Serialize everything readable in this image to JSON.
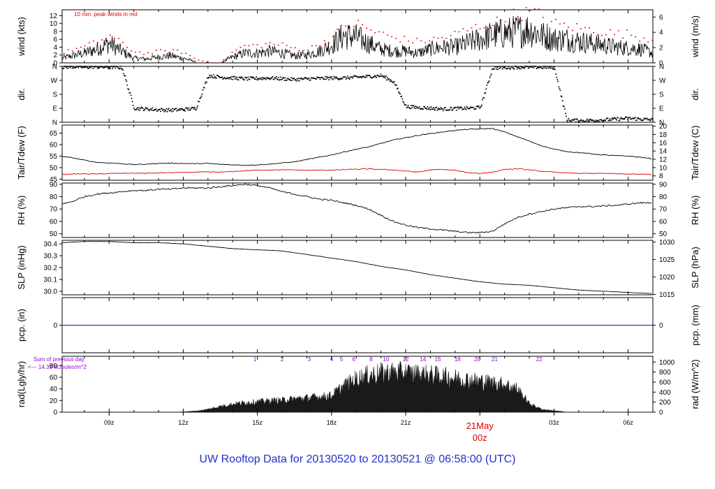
{
  "caption": "UW Rooftop Data for 20130520  to  20130521 @ 06:58:00  (UTC)",
  "colors": {
    "frame": "#000000",
    "data": "#000000",
    "peak": "#e00000",
    "dewpoint": "#e00000",
    "precip": "#1010c0",
    "annot": "#9400d3",
    "date": "#e00000",
    "caption": "#1f2fd0"
  },
  "wind_note": "10 min. peak winds in red",
  "rad_note_1": "Sum of previous day",
  "rad_note_2": "<--- 14.35 MJoules/m^2",
  "date_marker": {
    "day": "21May",
    "hour": "00z"
  },
  "x_ticks": [
    "09z",
    "12z",
    "15z",
    "18z",
    "21z",
    "00z",
    "03z",
    "06z"
  ],
  "chart_data": [
    {
      "type": "line",
      "id": "wind",
      "ylabel": "wind (kts)",
      "ylabel_right": "wind (m/s)",
      "yticks": [
        "0",
        "2",
        "4",
        "6",
        "8",
        "10",
        "12"
      ],
      "yticks_right": [
        "0",
        "2",
        "4",
        "6"
      ],
      "ylim": [
        0,
        13.5
      ],
      "series": [
        {
          "name": "10 min. peak winds in red",
          "x": [
            7.1,
            7.5,
            8.0,
            8.5,
            9.0,
            9.5,
            10.0,
            10.5,
            11.0,
            11.5,
            12.0,
            12.5,
            13.0,
            13.5,
            14.0,
            14.5,
            15.0,
            15.5,
            16.0,
            16.5,
            17.0,
            17.5,
            18.0,
            18.5,
            19.0,
            19.5,
            20.0,
            20.5,
            21.0,
            21.5,
            22.0,
            22.5,
            23.0,
            23.5,
            24.0,
            24.5,
            25.0,
            25.5,
            26.0,
            26.5,
            27.0,
            27.5,
            28.0,
            28.5,
            29.0,
            29.5,
            30.0,
            30.5,
            31.0
          ],
          "y": [
            2.5,
            3.5,
            4.2,
            5.5,
            7.0,
            5.0,
            3.0,
            2.5,
            3.0,
            3.2,
            2.8,
            1.0,
            0.2,
            0.2,
            3.0,
            4.5,
            4.5,
            5.0,
            4.6,
            3.8,
            3.5,
            5.0,
            6.5,
            9.5,
            10.0,
            8.5,
            7.5,
            6.5,
            6.0,
            5.5,
            6.0,
            6.5,
            7.5,
            8.5,
            9.5,
            10.0,
            11.5,
            12.5,
            13.0,
            12.0,
            10.0,
            9.5,
            9.0,
            8.5,
            8.0,
            7.5,
            7.5,
            6.5,
            6.0
          ]
        },
        {
          "name": "",
          "x": [
            7.1,
            7.5,
            8.0,
            8.5,
            9.0,
            9.5,
            10.0,
            10.5,
            11.0,
            11.5,
            12.0,
            12.5,
            13.0,
            13.5,
            14.0,
            14.5,
            15.0,
            15.5,
            16.0,
            16.5,
            17.0,
            17.5,
            18.0,
            18.5,
            19.0,
            19.5,
            20.0,
            20.5,
            21.0,
            21.5,
            22.0,
            22.5,
            23.0,
            23.5,
            24.0,
            24.5,
            25.0,
            25.5,
            26.0,
            26.5,
            27.0,
            27.5,
            28.0,
            28.5,
            29.0,
            29.5,
            30.0,
            30.5,
            31.0
          ],
          "y": [
            1.2,
            1.8,
            2.5,
            3.5,
            5.0,
            3.0,
            1.2,
            1.0,
            1.5,
            1.8,
            1.2,
            0.3,
            0.0,
            0.0,
            1.5,
            2.5,
            2.5,
            3.0,
            2.5,
            1.8,
            2.0,
            3.0,
            4.5,
            7.0,
            6.5,
            5.0,
            3.5,
            3.0,
            3.0,
            2.5,
            3.5,
            4.0,
            4.0,
            5.0,
            6.0,
            7.0,
            7.5,
            8.0,
            8.5,
            7.0,
            6.0,
            6.0,
            5.5,
            5.0,
            4.5,
            4.0,
            3.8,
            3.5,
            2.5
          ]
        }
      ]
    },
    {
      "type": "scatter",
      "id": "dir",
      "ylabel": "dir.",
      "ylabel_right": "dir.",
      "yticks": [
        "N",
        "E",
        "S",
        "W",
        "N"
      ],
      "yticks_right": [
        "N",
        "E",
        "S",
        "W",
        "N"
      ],
      "ylim": [
        0,
        360
      ],
      "series": [
        {
          "name": "",
          "x": [
            7.1,
            7.5,
            8.0,
            8.5,
            9.0,
            9.5,
            10.0,
            10.5,
            11.0,
            11.5,
            12.0,
            12.5,
            13.0,
            13.5,
            14.0,
            14.5,
            15.0,
            15.5,
            16.0,
            16.5,
            17.0,
            17.5,
            18.0,
            18.5,
            19.0,
            19.5,
            20.0,
            20.5,
            21.0,
            21.5,
            22.0,
            22.5,
            23.0,
            23.5,
            24.0,
            24.5,
            25.0,
            25.5,
            26.0,
            26.5,
            27.0,
            27.5,
            28.0,
            28.5,
            29.0,
            29.5,
            30.0,
            30.5,
            31.0
          ],
          "y": [
            355,
            358,
            355,
            356,
            355,
            352,
            90,
            85,
            80,
            78,
            82,
            90,
            300,
            290,
            285,
            280,
            282,
            285,
            280,
            275,
            280,
            282,
            285,
            285,
            290,
            295,
            300,
            260,
            100,
            95,
            90,
            85,
            88,
            90,
            95,
            350,
            352,
            355,
            355,
            354,
            352,
            15,
            10,
            12,
            15,
            20,
            25,
            20,
            15
          ]
        }
      ]
    },
    {
      "type": "line",
      "id": "temp",
      "ylabel": "Tair/Tdew (F)",
      "ylabel_right": "Tair/Tdew (C)",
      "yticks": [
        "45",
        "50",
        "55",
        "60",
        "65"
      ],
      "yticks_right": [
        "8",
        "10",
        "12",
        "14",
        "16",
        "18",
        "20"
      ],
      "ylim": [
        44.5,
        68.5
      ],
      "series": [
        {
          "name": "",
          "x": [
            7.1,
            7.5,
            8.0,
            8.5,
            9.0,
            9.5,
            10.0,
            10.5,
            11.0,
            11.5,
            12.0,
            12.5,
            13.0,
            13.5,
            14.0,
            14.5,
            15.0,
            15.5,
            16.0,
            16.5,
            17.0,
            17.5,
            18.0,
            18.5,
            19.0,
            19.5,
            20.0,
            20.5,
            21.0,
            21.5,
            22.0,
            22.5,
            23.0,
            23.5,
            24.0,
            24.5,
            25.0,
            25.5,
            26.0,
            26.5,
            27.0,
            27.5,
            28.0,
            28.5,
            29.0,
            29.5,
            30.0,
            30.5,
            31.0
          ],
          "y": [
            54.8,
            54.3,
            53.2,
            52.3,
            52.0,
            51.7,
            51.3,
            51.5,
            51.8,
            51.9,
            51.8,
            51.7,
            51.8,
            51.4,
            51.2,
            51.0,
            51.2,
            51.5,
            52.0,
            52.5,
            53.5,
            54.5,
            55.5,
            56.8,
            58.0,
            59.0,
            60.5,
            62.0,
            63.0,
            64.0,
            64.8,
            65.5,
            66.2,
            66.6,
            66.8,
            67.0,
            65.5,
            63.5,
            61.5,
            59.5,
            58.0,
            57.0,
            56.5,
            56.0,
            55.5,
            55.2,
            55.0,
            54.5,
            53.8
          ]
        },
        {
          "name": "",
          "x": [
            7.1,
            7.5,
            8.0,
            8.5,
            9.0,
            9.5,
            10.0,
            10.5,
            11.0,
            11.5,
            12.0,
            12.5,
            13.0,
            13.5,
            14.0,
            14.5,
            15.0,
            15.5,
            16.0,
            16.5,
            17.0,
            17.5,
            18.0,
            18.5,
            19.0,
            19.5,
            20.0,
            20.5,
            21.0,
            21.5,
            22.0,
            22.5,
            23.0,
            23.5,
            24.0,
            24.5,
            25.0,
            25.5,
            26.0,
            26.5,
            27.0,
            27.5,
            28.0,
            28.5,
            29.0,
            29.5,
            30.0,
            30.5,
            31.0
          ],
          "y": [
            47.0,
            47.2,
            47.3,
            47.2,
            47.4,
            47.5,
            47.6,
            47.5,
            47.7,
            47.8,
            47.9,
            48.0,
            48.1,
            48.0,
            48.3,
            48.6,
            48.9,
            49.0,
            49.0,
            49.0,
            48.8,
            48.9,
            48.9,
            49.1,
            49.3,
            49.4,
            49.2,
            49.0,
            48.5,
            48.0,
            49.0,
            49.2,
            48.8,
            47.8,
            47.5,
            48.0,
            49.2,
            49.5,
            49.0,
            48.4,
            48.0,
            47.7,
            47.5,
            47.4,
            47.5,
            47.3,
            47.2,
            47.1,
            47.0
          ]
        }
      ]
    },
    {
      "type": "line",
      "id": "rh",
      "ylabel": "RH (%)",
      "ylabel_right": "RH (%)",
      "yticks": [
        "50",
        "60",
        "70",
        "80",
        "90"
      ],
      "yticks_right": [
        "50",
        "60",
        "70",
        "80",
        "90"
      ],
      "ylim": [
        47,
        91
      ],
      "series": [
        {
          "name": "",
          "x": [
            7.1,
            7.5,
            8.0,
            8.5,
            9.0,
            9.5,
            10.0,
            10.5,
            11.0,
            11.5,
            12.0,
            12.5,
            13.0,
            13.5,
            14.0,
            14.5,
            15.0,
            15.5,
            16.0,
            16.5,
            17.0,
            17.5,
            18.0,
            18.5,
            19.0,
            19.5,
            20.0,
            20.5,
            21.0,
            21.5,
            22.0,
            22.5,
            23.0,
            23.5,
            24.0,
            24.5,
            25.0,
            25.5,
            26.0,
            26.5,
            27.0,
            27.5,
            28.0,
            28.5,
            29.0,
            29.5,
            30.0,
            30.5,
            31.0
          ],
          "y": [
            74,
            76,
            80,
            82,
            83,
            84,
            85,
            85,
            86,
            86,
            87,
            87,
            87,
            88,
            89,
            90,
            89,
            87,
            84,
            82,
            80,
            78,
            77,
            75,
            73,
            70,
            65,
            60,
            57,
            55,
            54,
            53,
            52,
            51,
            51,
            52,
            58,
            63,
            66,
            68,
            70,
            71,
            72,
            72,
            72.5,
            73,
            74,
            75,
            75
          ]
        }
      ]
    },
    {
      "type": "line",
      "id": "slp",
      "ylabel": "SLP (inHg)",
      "ylabel_right": "SLP (hPa)",
      "yticks": [
        "30.0",
        "30.1",
        "30.2",
        "30.3",
        "30.4"
      ],
      "yticks_right": [
        "1015",
        "1020",
        "1025",
        "1030"
      ],
      "ylim": [
        29.97,
        30.43
      ],
      "series": [
        {
          "name": "",
          "x": [
            7.1,
            8.0,
            9.0,
            10.0,
            11.0,
            12.0,
            13.0,
            14.0,
            15.0,
            16.0,
            17.0,
            18.0,
            19.0,
            20.0,
            21.0,
            22.0,
            23.0,
            24.0,
            25.0,
            26.0,
            27.0,
            28.0,
            29.0,
            30.0,
            31.0
          ],
          "y": [
            30.41,
            30.42,
            30.42,
            30.41,
            30.41,
            30.4,
            30.38,
            30.36,
            30.35,
            30.34,
            30.31,
            30.28,
            30.25,
            30.21,
            30.18,
            30.14,
            30.11,
            30.08,
            30.06,
            30.05,
            30.03,
            30.01,
            30.0,
            29.99,
            29.98
          ]
        }
      ]
    },
    {
      "type": "line",
      "id": "pcp",
      "ylabel": "pcp. (in)",
      "ylabel_right": "pcp. (mm)",
      "yticks": [
        "0"
      ],
      "yticks_right": [
        "0"
      ],
      "ylim": [
        -1,
        1
      ],
      "series": [
        {
          "name": "",
          "x": [
            7.1,
            31.0
          ],
          "y": [
            0,
            0
          ]
        }
      ]
    },
    {
      "type": "area",
      "id": "rad",
      "ylabel": "rad(Lgly/hr)",
      "ylabel_right": "rad (W/m^2)",
      "yticks": [
        "0",
        "20",
        "40",
        "60",
        "80"
      ],
      "yticks_right": [
        "0",
        "200",
        "400",
        "600",
        "800",
        "1000"
      ],
      "ylim": [
        0,
        96
      ],
      "series": [
        {
          "name": "",
          "x": [
            7.1,
            11.5,
            12.0,
            12.5,
            13.0,
            13.5,
            14.0,
            14.5,
            15.0,
            15.5,
            16.0,
            16.5,
            17.0,
            17.5,
            18.0,
            18.5,
            19.0,
            19.5,
            20.0,
            20.5,
            21.0,
            21.5,
            22.0,
            22.5,
            23.0,
            23.5,
            24.0,
            24.5,
            25.0,
            25.5,
            26.0,
            26.5,
            27.0,
            27.5,
            31.0
          ],
          "y": [
            0,
            0,
            0.5,
            2,
            6,
            12,
            17,
            20,
            22,
            24,
            25,
            28,
            30,
            32,
            35,
            55,
            70,
            78,
            82,
            84,
            83,
            80,
            78,
            75,
            72,
            68,
            65,
            62,
            58,
            50,
            18,
            6,
            3,
            0,
            0
          ]
        }
      ]
    }
  ],
  "rad_hour_labels": [
    "1",
    "2",
    "3",
    "4",
    "5",
    "6",
    "8",
    "10",
    "12",
    "14",
    "15",
    "18",
    "20",
    "21",
    "22"
  ]
}
